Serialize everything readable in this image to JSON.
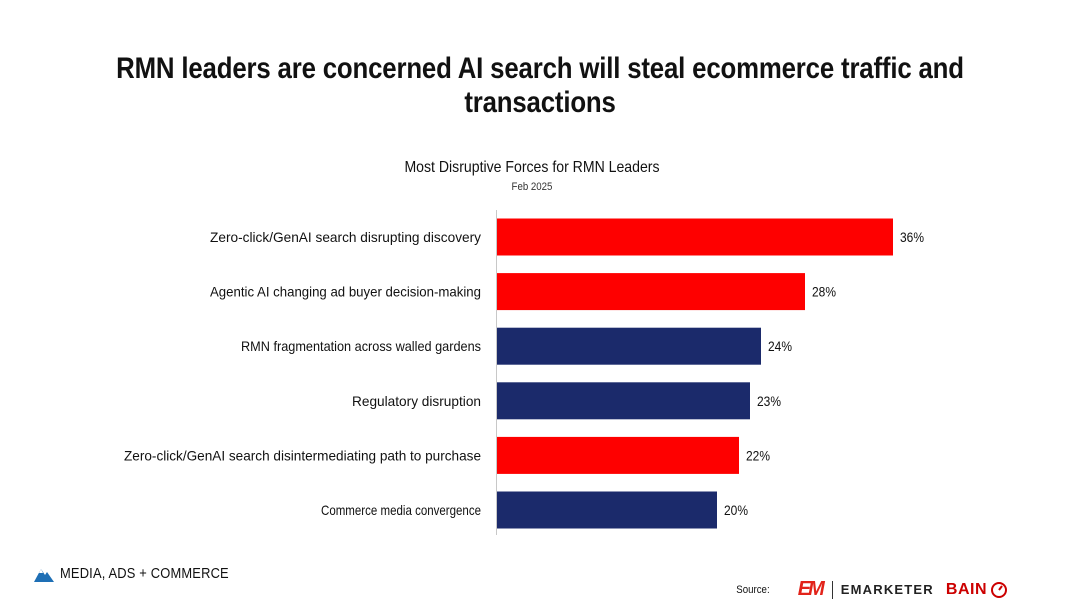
{
  "page": {
    "title": "RMN leaders are concerned AI search will steal ecommerce traffic and transactions"
  },
  "footer": {
    "brand": "MEDIA, ADS + COMMERCE",
    "source_label": "Source:",
    "emarketer_mark": "EM",
    "emarketer_name": "EMARKETER",
    "bain_name": "BAIN"
  },
  "colors": {
    "highlight": "#fe0000",
    "default": "#1b2a6b"
  },
  "chart_data": {
    "type": "bar",
    "orientation": "horizontal",
    "title": "Most Disruptive Forces for RMN Leaders",
    "subtitle": "Feb 2025",
    "categories": [
      "Zero-click/GenAI search disrupting discovery",
      "Agentic AI changing ad buyer decision-making",
      "RMN fragmentation across walled gardens",
      "Regulatory disruption",
      "Zero-click/GenAI search disintermediating path to purchase",
      "Commerce media convergence"
    ],
    "values": [
      36,
      28,
      24,
      23,
      22,
      20
    ],
    "labels": [
      "36%",
      "28%",
      "24%",
      "23%",
      "22%",
      "20%"
    ],
    "highlight": [
      true,
      true,
      false,
      false,
      true,
      false
    ],
    "xlim": [
      0,
      36
    ],
    "grid": false,
    "legend": false
  }
}
